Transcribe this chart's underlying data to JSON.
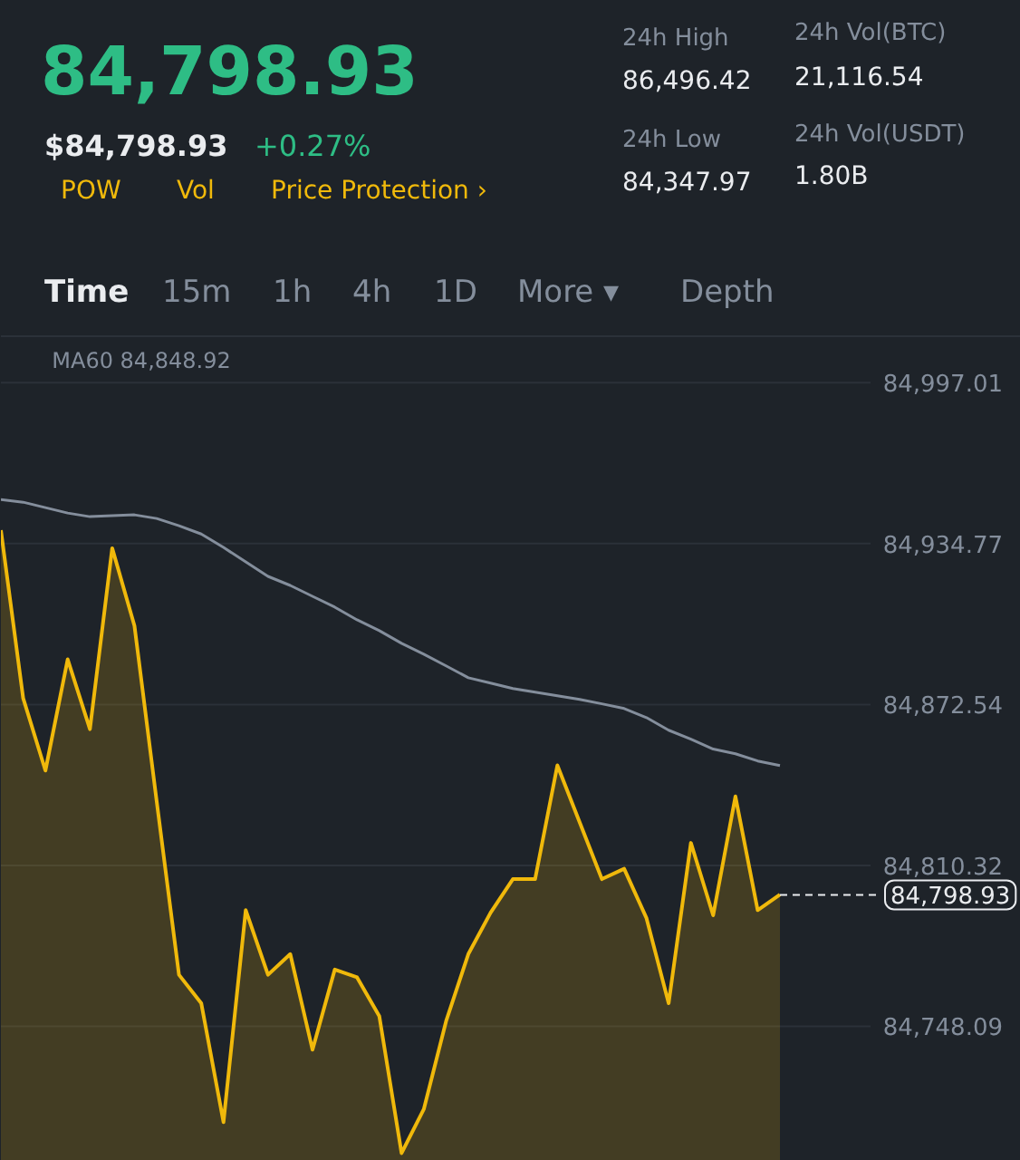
{
  "chart_data": {
    "type": "area",
    "title": "84,798.93",
    "categories": [
      null,
      null,
      null,
      null,
      null,
      null,
      null,
      null,
      null,
      null,
      null,
      null,
      null,
      null,
      null,
      null,
      null,
      null,
      null,
      null,
      null,
      null,
      null,
      null,
      null,
      null,
      null,
      null,
      null,
      null,
      null,
      null,
      null,
      null,
      null,
      null
    ],
    "series": [
      {
        "color": "#f0b90b",
        "values": [
          84940,
          84875,
          84847,
          84890,
          84863,
          84933,
          84903,
          84835,
          84768,
          84757,
          84711,
          84793,
          84768,
          84776,
          84739,
          84770,
          84767,
          84752,
          84699,
          84716,
          84750,
          84776,
          84792,
          84805,
          84805,
          84849,
          84827,
          84805,
          84809,
          84790,
          84757,
          84819,
          84791,
          84837,
          84793,
          84799
        ]
      },
      {
        "type": "line",
        "color": "#848e9c",
        "values": [
          84951.8,
          84950.8,
          84948.7,
          84946.6,
          84945.2,
          84945.6,
          84945.9,
          84944.5,
          84941.7,
          84938.5,
          84933.3,
          84927.7,
          84922.1,
          84918.6,
          84914.4,
          84910.2,
          84905.3,
          84901.1,
          84896.2,
          84892.0,
          84887.5,
          84882.9,
          84880.8,
          84878.7,
          84877.3,
          84875.9,
          84874.5,
          84872.8,
          84871.0,
          84867.5,
          84862.6,
          84859.1,
          84855.3,
          84853.5,
          84850.7,
          84848.9
        ]
      }
    ],
    "ylim": [
      84696,
      85015
    ],
    "yticks": [
      {
        "value": 84748.09,
        "label": "84,748.09"
      },
      {
        "value": 84810.32,
        "label": "84,810.32"
      },
      {
        "value": 84872.54,
        "label": "84,872.54"
      },
      {
        "value": 84934.77,
        "label": "84,934.77"
      },
      {
        "value": 84997.01,
        "label": "84,997.01"
      }
    ],
    "grid": "y",
    "ref_lines": [
      {
        "axis": "y",
        "value": 84798.93,
        "label": "84,798.93",
        "line_style": "dashed",
        "color": "#eaecef"
      }
    ],
    "annotations": [
      "$84,798.93",
      "+0.27%",
      "POW",
      "Vol",
      "Price Protection ›",
      "24h High",
      "86,496.42",
      "24h Low",
      "84,347.97",
      "24h Vol(BTC)",
      "21,116.54",
      "24h Vol(USDT)",
      "1.80B",
      "Time",
      "15m",
      "1h",
      "4h",
      "1D",
      "More ▾",
      "Depth",
      "MA60 84,848.92"
    ]
  }
}
